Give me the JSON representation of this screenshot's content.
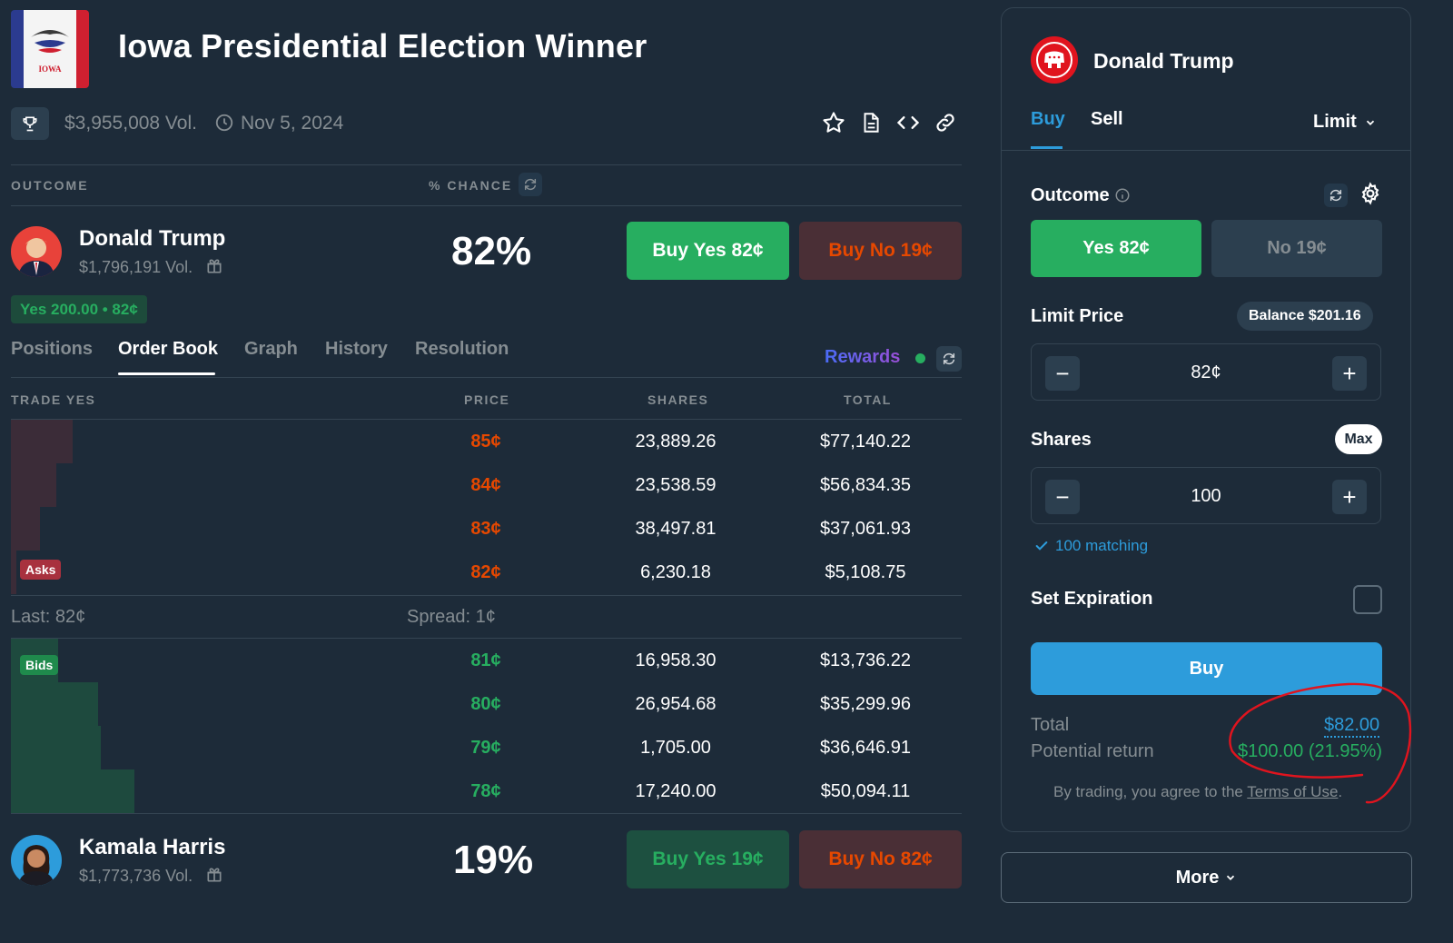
{
  "header": {
    "flag_label": "IOWA",
    "title": "Iowa Presidential Election Winner",
    "volume": "$3,955,008 Vol.",
    "date": "Nov 5, 2024"
  },
  "table_head": {
    "outcome": "OUTCOME",
    "chance": "% CHANCE"
  },
  "candidates": [
    {
      "name": "Donald Trump",
      "volume": "$1,796,191 Vol.",
      "chance": "82%",
      "buy_yes": "Buy Yes 82¢",
      "buy_no": "Buy No 19¢"
    },
    {
      "name": "Kamala Harris",
      "volume": "$1,773,736 Vol.",
      "chance": "19%",
      "buy_yes": "Buy Yes 19¢",
      "buy_no": "Buy No 82¢"
    }
  ],
  "position_badge": "Yes 200.00 • 82¢",
  "tabs": [
    "Positions",
    "Order Book",
    "Graph",
    "History",
    "Resolution"
  ],
  "active_tab": "Order Book",
  "rewards_label": "Rewards",
  "order_book": {
    "headers": [
      "TRADE YES",
      "PRICE",
      "SHARES",
      "TOTAL"
    ],
    "asks_label": "Asks",
    "bids_label": "Bids",
    "asks": [
      {
        "price": "85¢",
        "shares": "23,889.26",
        "total": "$77,140.22"
      },
      {
        "price": "84¢",
        "shares": "23,538.59",
        "total": "$56,834.35"
      },
      {
        "price": "83¢",
        "shares": "38,497.81",
        "total": "$37,061.93"
      },
      {
        "price": "82¢",
        "shares": "6,230.18",
        "total": "$5,108.75"
      }
    ],
    "last": "Last: 82¢",
    "spread": "Spread: 1¢",
    "bids": [
      {
        "price": "81¢",
        "shares": "16,958.30",
        "total": "$13,736.22"
      },
      {
        "price": "80¢",
        "shares": "26,954.68",
        "total": "$35,299.96"
      },
      {
        "price": "79¢",
        "shares": "1,705.00",
        "total": "$36,646.91"
      },
      {
        "price": "78¢",
        "shares": "17,240.00",
        "total": "$50,094.11"
      }
    ]
  },
  "panel": {
    "candidate": "Donald Trump",
    "tab_buy": "Buy",
    "tab_sell": "Sell",
    "order_type": "Limit",
    "outcome_label": "Outcome",
    "outcome_yes": "Yes 82¢",
    "outcome_no": "No 19¢",
    "limit_price_label": "Limit Price",
    "balance": "Balance $201.16",
    "limit_price": "82¢",
    "shares_label": "Shares",
    "max_label": "Max",
    "shares": "100",
    "matching": "100 matching",
    "expiration_label": "Set Expiration",
    "buy_button": "Buy",
    "total_label": "Total",
    "total_value": "$82.00",
    "return_label": "Potential return",
    "return_value": "$100.00 (21.95%)",
    "terms_prefix": "By trading, you agree to the ",
    "terms_link": "Terms of Use",
    "terms_suffix": "."
  },
  "more_button": "More",
  "colors": {
    "background": "#1d2b39",
    "green": "#27ae60",
    "red": "#e64800",
    "blue": "#2d9cdb",
    "annotation": "#e0141e"
  }
}
